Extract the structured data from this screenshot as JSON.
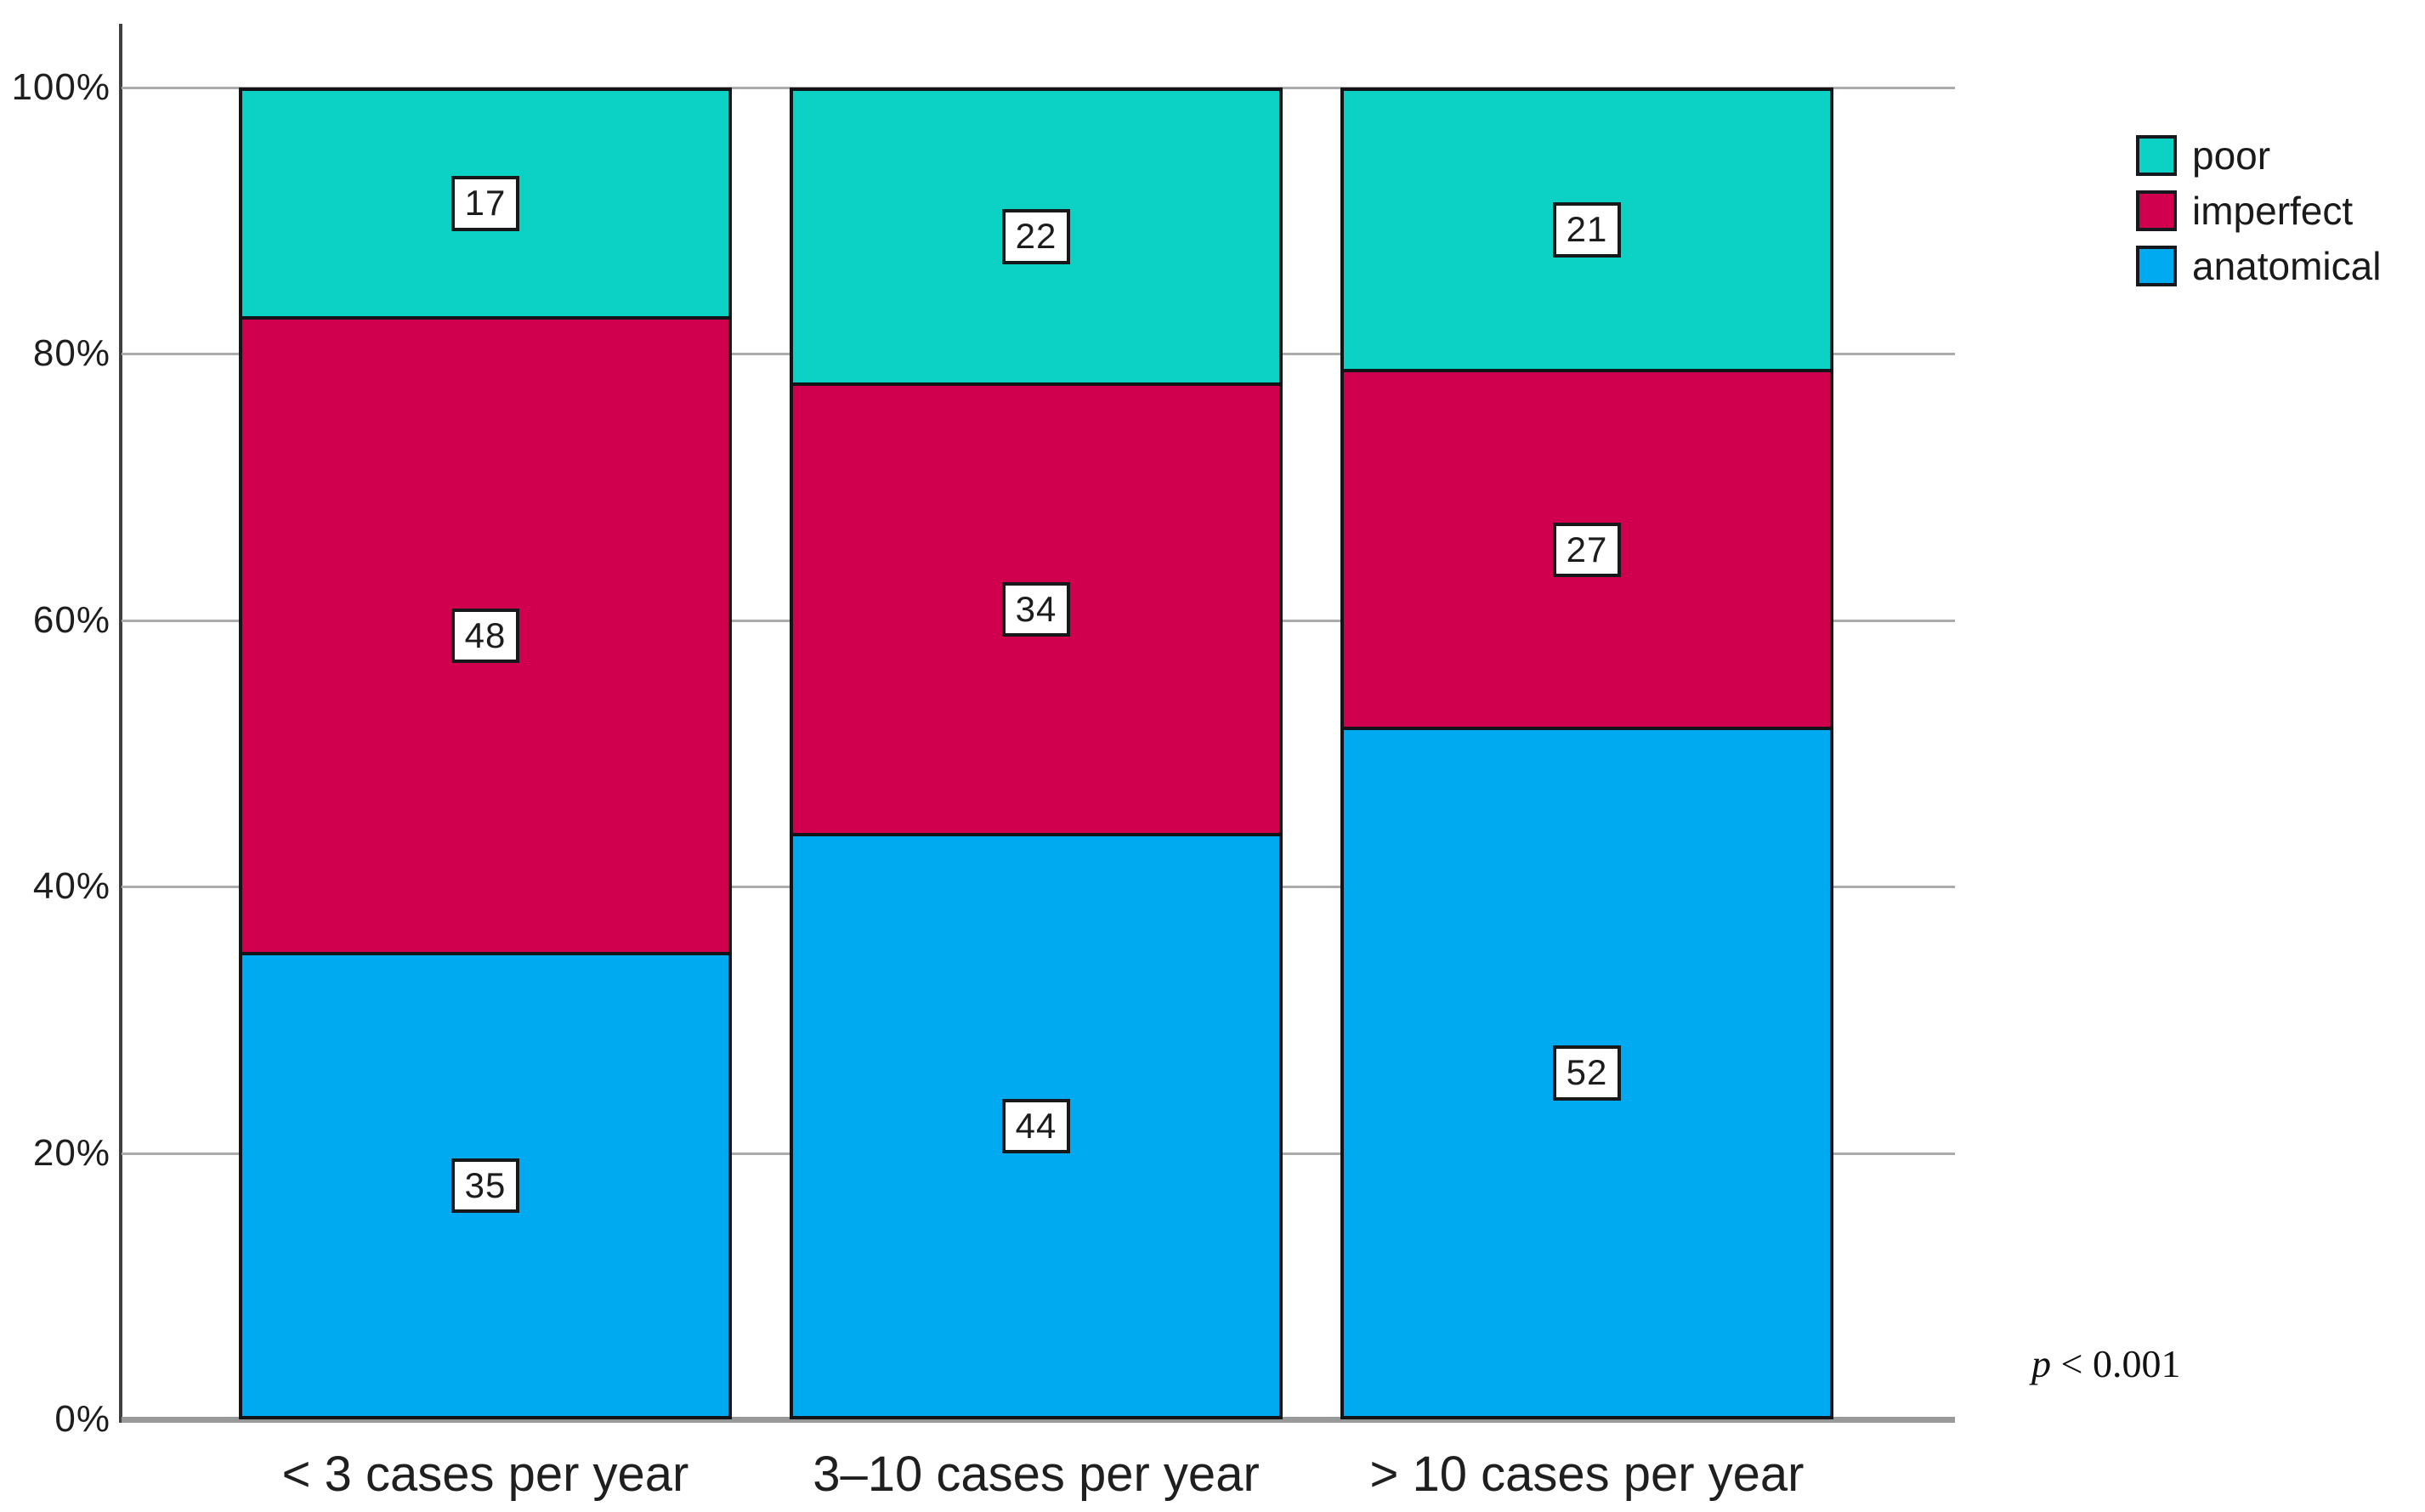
{
  "chart_data": {
    "type": "bar",
    "variant": "stacked-100-percent",
    "title": "",
    "xlabel": "",
    "ylabel": "",
    "categories": [
      "< 3 cases per year",
      "3–10 cases per year",
      "> 10 cases per year"
    ],
    "series": [
      {
        "name": "poor",
        "color": "#0cd2c6",
        "values": [
          17,
          22,
          21
        ]
      },
      {
        "name": "imperfect",
        "color": "#d1004f",
        "values": [
          48,
          34,
          27
        ]
      },
      {
        "name": "anatomical",
        "color": "#00aaf0",
        "values": [
          35,
          44,
          52
        ]
      }
    ],
    "stack_order_note": "series listed top-to-bottom as stacked; anatomical is the bottom segment",
    "ylim": [
      0,
      100
    ],
    "y_ticks": [
      {
        "value": 100,
        "label": "100%"
      },
      {
        "value": 80,
        "label": "80%"
      },
      {
        "value": 60,
        "label": "60%"
      },
      {
        "value": 40,
        "label": "40%"
      },
      {
        "value": 20,
        "label": "20%"
      },
      {
        "value": 0,
        "label": "0%"
      }
    ],
    "grid": "horizontal",
    "legend_position": "top-right",
    "legend": [
      {
        "label": "poor",
        "color": "#0cd2c6"
      },
      {
        "label": "imperfect",
        "color": "#d1004f"
      },
      {
        "label": "anatomical",
        "color": "#00aaf0"
      }
    ],
    "annotation": {
      "variable": "p",
      "text": " < 0.001"
    }
  },
  "colors": {
    "poor": "#0cd2c6",
    "imperfect": "#d1004f",
    "anatomical": "#00aaf0",
    "segment_border": "#121418",
    "gridline": "#ababab",
    "baseline": "#999999",
    "axis_line": "#404040",
    "text": "#1e1e1e"
  }
}
